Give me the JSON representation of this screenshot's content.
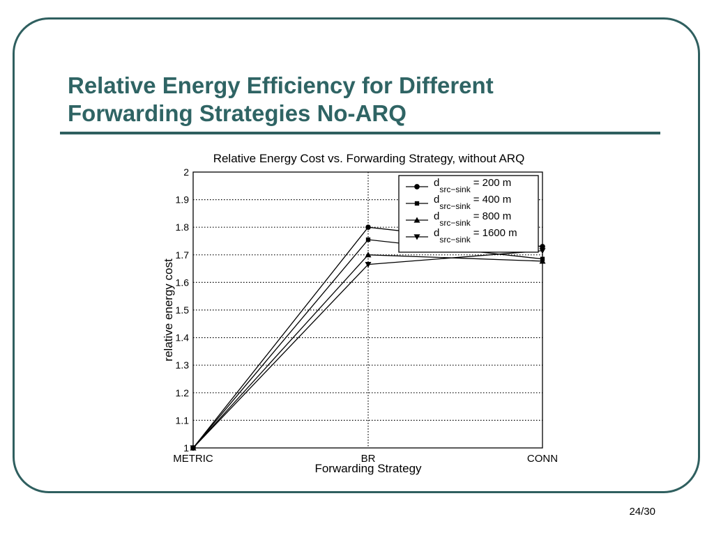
{
  "slide": {
    "title_line1": "Relative Energy Efficiency for Different",
    "title_line2": "Forwarding Strategies No-ARQ",
    "page_number": "24/30",
    "accent_color": "#2f6464"
  },
  "chart_data": {
    "type": "line",
    "title": "Relative Energy Cost vs. Forwarding Strategy, without ARQ",
    "xlabel": "Forwarding Strategy",
    "ylabel": "relative energy cost",
    "categories": [
      "METRIC",
      "BR",
      "CONN"
    ],
    "ylim": [
      1,
      2
    ],
    "yticks": [
      "1",
      "1.1",
      "1.2",
      "1.3",
      "1.4",
      "1.5",
      "1.6",
      "1.7",
      "1.8",
      "1.9",
      "2"
    ],
    "grid": true,
    "legend_position": "top-right",
    "series": [
      {
        "name": "d",
        "subscript": "src−sink",
        "suffix": "= 200 m",
        "marker": "circle",
        "values": [
          1.0,
          1.8,
          1.73
        ]
      },
      {
        "name": "d",
        "subscript": "src−sink",
        "suffix": "= 400 m",
        "marker": "square",
        "values": [
          1.0,
          1.755,
          1.685
        ]
      },
      {
        "name": "d",
        "subscript": "src−sink",
        "suffix": "= 800 m",
        "marker": "triangle-up",
        "values": [
          1.0,
          1.7,
          1.677
        ]
      },
      {
        "name": "d",
        "subscript": "src−sink",
        "suffix": "= 1600 m",
        "marker": "triangle-down",
        "values": [
          1.0,
          1.665,
          1.715
        ]
      }
    ]
  }
}
